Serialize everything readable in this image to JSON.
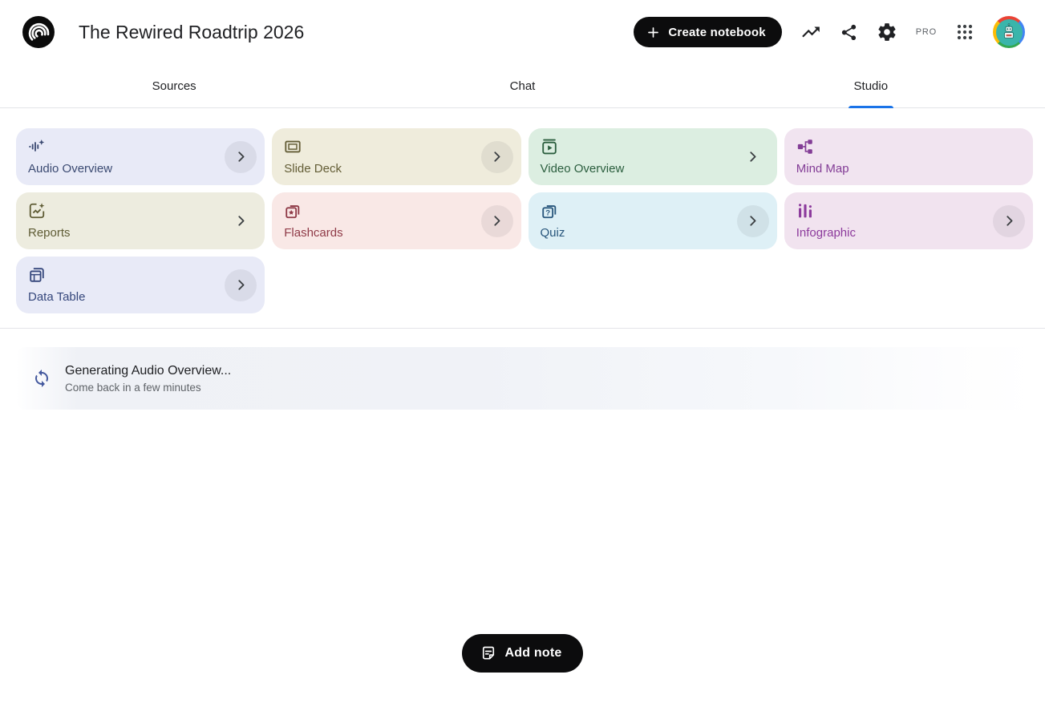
{
  "header": {
    "app_logo": "notebooklm-logo",
    "notebook_title": "The Rewired Roadtrip 2026",
    "create_notebook_label": "Create notebook",
    "pro_label": "PRO"
  },
  "tabs": [
    {
      "label": "Sources",
      "active": false
    },
    {
      "label": "Chat",
      "active": false
    },
    {
      "label": "Studio",
      "active": true
    }
  ],
  "studio": {
    "cards": [
      {
        "label": "Audio Overview",
        "icon": "audio-overview-icon",
        "bg": "#e8eaf7",
        "fg": "#3b4a72",
        "chevron": "circle"
      },
      {
        "label": "Slide Deck",
        "icon": "slide-deck-icon",
        "bg": "#efecdc",
        "fg": "#635d36",
        "chevron": "circle"
      },
      {
        "label": "Video Overview",
        "icon": "video-overview-icon",
        "bg": "#dceee1",
        "fg": "#2b5e3e",
        "chevron": "plain"
      },
      {
        "label": "Mind Map",
        "icon": "mind-map-icon",
        "bg": "#f1e4f0",
        "fg": "#833d96",
        "chevron": "none"
      },
      {
        "label": "Reports",
        "icon": "reports-icon",
        "bg": "#edecdf",
        "fg": "#5f5c35",
        "chevron": "plain"
      },
      {
        "label": "Flashcards",
        "icon": "flashcards-icon",
        "bg": "#f9e8e6",
        "fg": "#8f3a47",
        "chevron": "circle"
      },
      {
        "label": "Quiz",
        "icon": "quiz-icon",
        "bg": "#def0f6",
        "fg": "#28567c",
        "chevron": "circle"
      },
      {
        "label": "Infographic",
        "icon": "infographic-icon",
        "bg": "#f1e3ef",
        "fg": "#8c3a9c",
        "chevron": "circle"
      },
      {
        "label": "Data Table",
        "icon": "data-table-icon",
        "bg": "#e8eaf7",
        "fg": "#35477c",
        "chevron": "circle"
      }
    ]
  },
  "status": {
    "icon": "sync-icon",
    "icon_color": "#44599e",
    "title": "Generating Audio Overview...",
    "subtitle": "Come back in a few minutes"
  },
  "footer": {
    "add_note_label": "Add note"
  },
  "colors": {
    "accent_blue": "#1a73e8",
    "button_black": "#0c0c0d"
  }
}
